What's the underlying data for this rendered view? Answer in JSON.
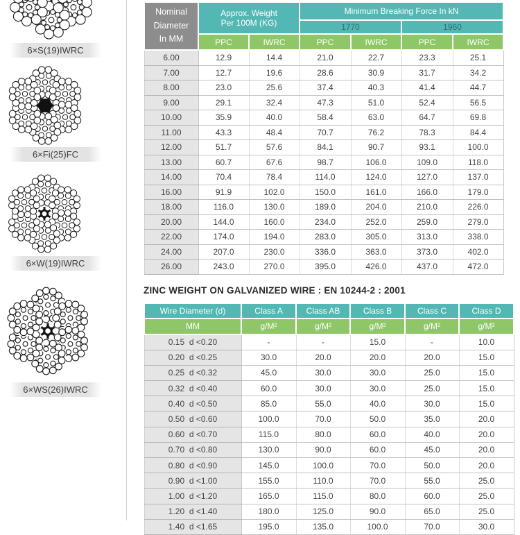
{
  "colors": {
    "teal": "#53b8b4",
    "green": "#8fc768",
    "gray_header": "#8d8d8d",
    "label_bar": "#e3e3e3"
  },
  "diagrams": [
    {
      "label": "6×S(19)IWRC",
      "core": "iwrc"
    },
    {
      "label": "6×Fi(25)FC",
      "core": "fc"
    },
    {
      "label": "6×W(19)IWRC",
      "core": "iwrc"
    },
    {
      "label": "6×WS(26)IWRC",
      "core": "iwrc"
    }
  ],
  "rope_table": {
    "col1_lines": [
      "Nominal",
      "Diameter",
      "In MM"
    ],
    "weight_line1": "Approx. Weight",
    "weight_line2": "Per 100M (KG)",
    "breaking_header": "Minimum Breaking Force In kN",
    "grades": [
      "1770",
      "1960"
    ],
    "sub_headers": [
      "PPC",
      "IWRC",
      "PPC",
      "IWRC",
      "PPC",
      "IWRC"
    ],
    "rows": [
      [
        "6.00",
        "12.9",
        "14.4",
        "21.0",
        "22.7",
        "23.3",
        "25.1"
      ],
      [
        "7.00",
        "12.7",
        "19.6",
        "28.6",
        "30.9",
        "31.7",
        "34.2"
      ],
      [
        "8.00",
        "23.0",
        "25.6",
        "37.4",
        "40.3",
        "41.4",
        "44.7"
      ],
      [
        "9.00",
        "29.1",
        "32.4",
        "47.3",
        "51.0",
        "52.4",
        "56.5"
      ],
      [
        "10.00",
        "35.9",
        "40.0",
        "58.4",
        "63.0",
        "64.7",
        "69.8"
      ],
      [
        "11.00",
        "43.3",
        "48.4",
        "70.7",
        "76.2",
        "78.3",
        "84.4"
      ],
      [
        "12.00",
        "51.7",
        "57.6",
        "84.1",
        "90.7",
        "93.1",
        "100.0"
      ],
      [
        "13.00",
        "60.7",
        "67.6",
        "98.7",
        "106.0",
        "109.0",
        "118.0"
      ],
      [
        "14.00",
        "70.4",
        "78.4",
        "114.0",
        "124.0",
        "127.0",
        "137.0"
      ],
      [
        "16.00",
        "91.9",
        "102.0",
        "150.0",
        "161.0",
        "166.0",
        "179.0"
      ],
      [
        "18.00",
        "116.0",
        "130.0",
        "189.0",
        "204.0",
        "210.0",
        "226.0"
      ],
      [
        "20.00",
        "144.0",
        "160.0",
        "234.0",
        "252.0",
        "259.0",
        "279.0"
      ],
      [
        "22.00",
        "174.0",
        "194.0",
        "283.0",
        "305.0",
        "313.0",
        "338.0"
      ],
      [
        "24.00",
        "207.0",
        "230.0",
        "336.0",
        "363.0",
        "373.0",
        "402.0"
      ],
      [
        "26.00",
        "243.0",
        "270.0",
        "395.0",
        "426.0",
        "437.0",
        "472.0"
      ]
    ]
  },
  "zinc_section": {
    "title": "ZINC WEIGHT ON GALVANIZED WIRE : EN 10244-2 : 2001",
    "headers": [
      "Wire Diameter (d)",
      "Class A",
      "Class AB",
      "Class B",
      "Class C",
      "Class D"
    ],
    "units": [
      "MM",
      "g/M²",
      "g/M²",
      "g/M²",
      "g/M²",
      "g/M²"
    ],
    "rows": [
      [
        "0.15  d <0.20",
        "-",
        "-",
        "15.0",
        "-",
        "10.0"
      ],
      [
        "0.20  d <0.25",
        "30.0",
        "20.0",
        "20.0",
        "20.0",
        "15.0"
      ],
      [
        "0.25  d <0.32",
        "45.0",
        "30.0",
        "30.0",
        "25.0",
        "15.0"
      ],
      [
        "0.32  d <0.40",
        "60.0",
        "30.0",
        "30.0",
        "25.0",
        "15.0"
      ],
      [
        "0.40  d <0.50",
        "85.0",
        "55.0",
        "40.0",
        "30.0",
        "15.0"
      ],
      [
        "0.50  d <0.60",
        "100.0",
        "70.0",
        "50.0",
        "35.0",
        "20.0"
      ],
      [
        "0.60  d <0.70",
        "115.0",
        "80.0",
        "60.0",
        "40.0",
        "20.0"
      ],
      [
        "0.70  d <0.80",
        "130.0",
        "90.0",
        "60.0",
        "45.0",
        "20.0"
      ],
      [
        "0.80  d <0.90",
        "145.0",
        "100.0",
        "70.0",
        "50.0",
        "20.0"
      ],
      [
        "0.90  d <1.00",
        "155.0",
        "110.0",
        "70.0",
        "55.0",
        "25.0"
      ],
      [
        "1.00  d <1.20",
        "165.0",
        "115.0",
        "80.0",
        "60.0",
        "25.0"
      ],
      [
        "1.20  d <1.40",
        "180.0",
        "125.0",
        "90.0",
        "65.0",
        "25.0"
      ],
      [
        "1.40  d <1.65",
        "195.0",
        "135.0",
        "100.0",
        "70.0",
        "30.0"
      ]
    ]
  }
}
